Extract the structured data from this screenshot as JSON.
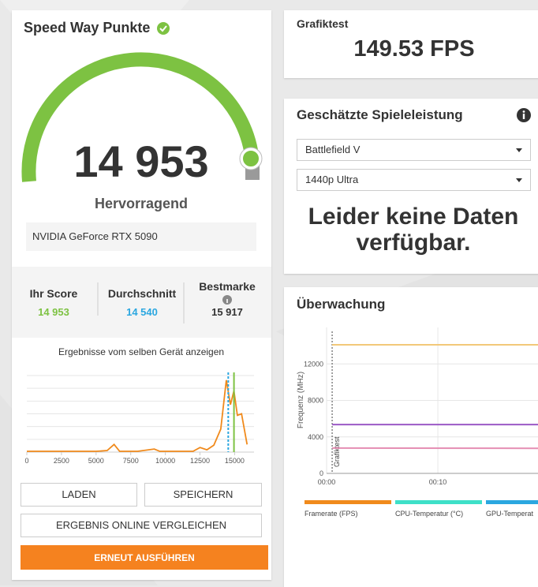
{
  "score_panel": {
    "title": "Speed Way Punkte",
    "score": "14 953",
    "rating": "Hervorragend",
    "gpu": "NVIDIA GeForce RTX 5090",
    "stats": [
      {
        "label": "Ihr Score",
        "value": {
          "value": 14953,
          "label": "14 953"
        },
        "color": "#7dc242"
      },
      {
        "label": "Durchschnitt",
        "value": {
          "value": 14540,
          "label": "14 540"
        },
        "color": "#2ba7e0"
      },
      {
        "label": "Bestmarke",
        "value": {
          "value": 15917,
          "label": "15 917"
        },
        "color": "#333333"
      }
    ]
  },
  "distribution_chart": {
    "type": "line",
    "caption": "Ergebnisse vom selben Gerät anzeigen",
    "x": [
      0,
      5000,
      5800,
      6300,
      6700,
      8000,
      9200,
      9600,
      12000,
      12500,
      13000,
      13500,
      14000,
      14400,
      14700,
      14950,
      15200,
      15500,
      15900
    ],
    "values": [
      1,
      1,
      2,
      10,
      1,
      1,
      4,
      1,
      1,
      6,
      3,
      9,
      30,
      94,
      62,
      80,
      48,
      50,
      10
    ],
    "color": "#f08a1c",
    "xlim": [
      0,
      16400
    ],
    "ylim": [
      0,
      100
    ],
    "xticks": [
      0,
      2500,
      5000,
      7500,
      10000,
      12500,
      15000
    ],
    "grid": true
  },
  "buttons": [
    "LADEN",
    "SPEICHERN",
    "ERGEBNIS ONLINE VERGLEICHEN",
    "ERNEUT AUSFÜHREN"
  ],
  "graphics_test": {
    "label": "Grafiktest",
    "fps": "149.53 FPS"
  },
  "game_performance": {
    "title": "Geschätzte Spieleleistung",
    "game": "Battlefield V",
    "preset": "1440p Ultra",
    "message": "Leider keine Daten verfügbar."
  },
  "monitoring": {
    "title": "Überwachung",
    "chart": {
      "type": "line",
      "y_label": "Frequenz (MHz)",
      "annotation": {
        "label": "Grafiktest",
        "x": 30
      },
      "x": [
        30,
        1140
      ],
      "series": [
        {
          "color": "#f2c879",
          "values": [
            14100,
            14100
          ]
        },
        {
          "color": "#9b59c6",
          "values": [
            5350,
            5350
          ]
        },
        {
          "color": "#e58fb4",
          "values": [
            2780,
            2750
          ]
        }
      ],
      "xlim": [
        0,
        1140
      ],
      "ylim": [
        0,
        16000
      ],
      "xticks": [
        {
          "value": 0,
          "label": "00:00"
        },
        {
          "value": 600,
          "label": "00:10"
        }
      ],
      "yticks": [
        0,
        4000,
        8000,
        12000
      ],
      "grid": true
    },
    "legend": [
      {
        "name": "Framerate (FPS)",
        "color": "#f08a1c"
      },
      {
        "name": "CPU-Temperatur (°C)",
        "color": "#3ee0c8"
      },
      {
        "name": "GPU-Temperat",
        "color": "#2ba7e0"
      }
    ]
  }
}
